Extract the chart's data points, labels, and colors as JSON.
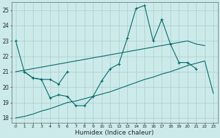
{
  "xlabel": "Humidex (Indice chaleur)",
  "bg_color": "#cceaea",
  "grid_color": "#aacccc",
  "line_color": "#006666",
  "xlim": [
    -0.5,
    23.5
  ],
  "ylim": [
    17.7,
    25.5
  ],
  "yticks": [
    18,
    19,
    20,
    21,
    22,
    23,
    24,
    25
  ],
  "xticks": [
    0,
    1,
    2,
    3,
    4,
    5,
    6,
    7,
    8,
    9,
    10,
    11,
    12,
    13,
    14,
    15,
    16,
    17,
    18,
    19,
    20,
    21,
    22,
    23
  ],
  "series1_x": [
    0,
    1,
    2,
    3,
    4,
    5,
    6,
    7,
    8,
    9,
    10,
    11,
    12,
    13,
    14,
    15,
    16,
    17,
    18,
    19,
    20,
    21
  ],
  "series1_y": [
    23.0,
    21.0,
    20.6,
    20.5,
    19.3,
    19.5,
    19.4,
    18.8,
    18.8,
    19.4,
    20.4,
    21.2,
    21.5,
    23.2,
    25.1,
    25.3,
    23.0,
    24.4,
    22.8,
    21.6,
    21.6,
    21.2
  ],
  "series2_x": [
    1,
    2,
    3,
    4,
    5,
    6
  ],
  "series2_y": [
    21.0,
    20.6,
    20.5,
    20.5,
    20.2,
    21.0
  ],
  "series3_x": [
    0,
    1,
    2,
    3,
    4,
    5,
    6,
    7,
    8,
    9,
    10,
    11,
    12,
    13,
    14,
    15,
    16,
    17,
    18,
    19,
    20,
    21,
    22,
    23
  ],
  "series3_y": [
    18.0,
    18.1,
    18.25,
    18.45,
    18.6,
    18.8,
    19.0,
    19.1,
    19.25,
    19.4,
    19.55,
    19.7,
    19.9,
    20.1,
    20.3,
    20.5,
    20.65,
    20.85,
    21.0,
    21.2,
    21.4,
    21.55,
    21.7,
    19.6
  ],
  "series4_x": [
    0,
    1,
    2,
    3,
    4,
    5,
    6,
    7,
    8,
    9,
    10,
    11,
    12,
    13,
    14,
    15,
    16,
    17,
    18,
    19,
    20,
    21,
    22
  ],
  "series4_y": [
    21.0,
    21.1,
    21.2,
    21.3,
    21.4,
    21.5,
    21.6,
    21.7,
    21.8,
    21.9,
    22.0,
    22.1,
    22.2,
    22.3,
    22.4,
    22.5,
    22.6,
    22.7,
    22.8,
    22.9,
    23.0,
    22.8,
    22.7
  ]
}
